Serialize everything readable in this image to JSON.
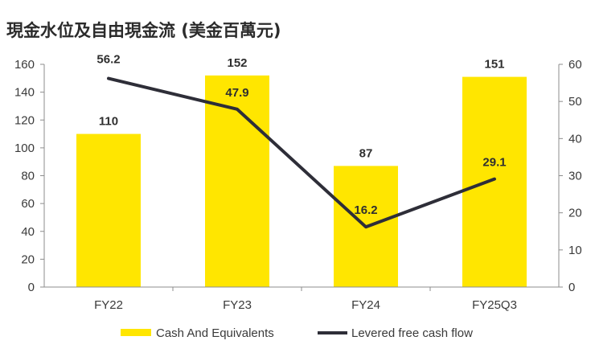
{
  "title": "現金水位及自由現金流 (美金百萬元)",
  "chart_data": {
    "type": "bar",
    "title": "現金水位及自由現金流 (美金百萬元)",
    "categories": [
      "FY22",
      "FY23",
      "FY24",
      "FY25Q3"
    ],
    "series": [
      {
        "name": "Cash And Equivalents",
        "type": "bar",
        "axis": "left",
        "values": [
          110,
          152,
          87,
          151
        ],
        "labels": [
          "110",
          "152",
          "87",
          "151"
        ],
        "color": "#FFE600"
      },
      {
        "name": "Levered free cash flow",
        "type": "line",
        "axis": "right",
        "values": [
          56.2,
          47.9,
          16.2,
          29.1
        ],
        "labels": [
          "56.2",
          "47.9",
          "16.2",
          "29.1"
        ],
        "color": "#2E2E38"
      }
    ],
    "y_left": {
      "ylim": [
        0,
        160
      ],
      "ticks": [
        "0",
        "20",
        "40",
        "60",
        "80",
        "100",
        "120",
        "140",
        "160"
      ]
    },
    "y_right": {
      "ylim": [
        0,
        60
      ],
      "ticks": [
        "0",
        "10",
        "20",
        "30",
        "40",
        "50",
        "60"
      ]
    },
    "grid": false,
    "legend_position": "bottom"
  }
}
